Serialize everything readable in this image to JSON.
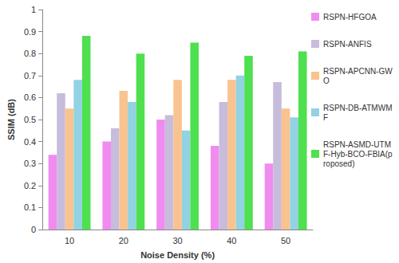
{
  "chart_data": {
    "type": "bar",
    "x_label": "Noise Density (%)",
    "y_label": "SSIM (dB)",
    "categories": [
      "10",
      "20",
      "30",
      "40",
      "50"
    ],
    "series": [
      {
        "name": "RSPN-HFGOA",
        "color": "#f08cf0",
        "values": [
          0.34,
          0.4,
          0.5,
          0.38,
          0.3
        ]
      },
      {
        "name": "RSPN-ANFIS",
        "color": "#c8bcdc",
        "values": [
          0.62,
          0.46,
          0.52,
          0.58,
          0.67
        ]
      },
      {
        "name": "RSPN-APCNN-GWO",
        "color": "#f9c38f",
        "values": [
          0.55,
          0.63,
          0.68,
          0.68,
          0.55
        ]
      },
      {
        "name": "RSPN-DB-ATMWMF",
        "color": "#92d2e2",
        "values": [
          0.68,
          0.58,
          0.45,
          0.7,
          0.51
        ]
      },
      {
        "name": "RSPN-ASMD-UTMF-Hyb-BCO-FBIA(proposed)",
        "color": "#4ee04e",
        "values": [
          0.88,
          0.8,
          0.85,
          0.79,
          0.81
        ]
      }
    ],
    "ylim": [
      0,
      1
    ],
    "yticks": [
      0,
      0.1,
      0.2,
      0.3,
      0.4,
      0.5,
      0.6,
      0.7,
      0.8,
      0.9,
      1
    ],
    "grid": false,
    "legend": "right"
  }
}
